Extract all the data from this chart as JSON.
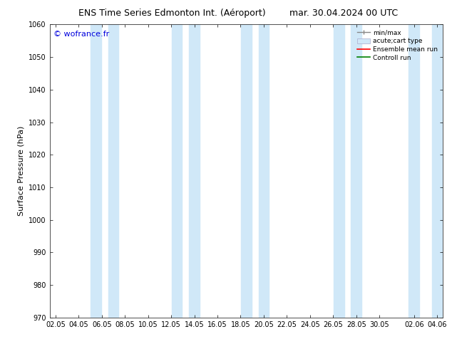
{
  "title_left": "ENS Time Series Edmonton Int. (Aéroport)",
  "title_right": "mar. 30.04.2024 00 UTC",
  "ylabel": "Surface Pressure (hPa)",
  "ylim": [
    970,
    1060
  ],
  "yticks": [
    970,
    980,
    990,
    1000,
    1010,
    1020,
    1030,
    1040,
    1050,
    1060
  ],
  "xtick_labels": [
    "02.05",
    "04.05",
    "06.05",
    "08.05",
    "10.05",
    "12.05",
    "14.05",
    "16.05",
    "18.05",
    "20.05",
    "22.05",
    "24.05",
    "26.05",
    "28.05",
    "30.05",
    "02.06",
    "04.06"
  ],
  "watermark": "© wofrance.fr",
  "watermark_color": "#0000dd",
  "band_color": "#d0e8f8",
  "bg_color": "#ffffff",
  "legend_labels": [
    "min/max",
    "acute;cart type",
    "Ensemble mean run",
    "Controll run"
  ],
  "title_fontsize": 9,
  "label_fontsize": 8,
  "tick_fontsize": 7,
  "watermark_fontsize": 8
}
